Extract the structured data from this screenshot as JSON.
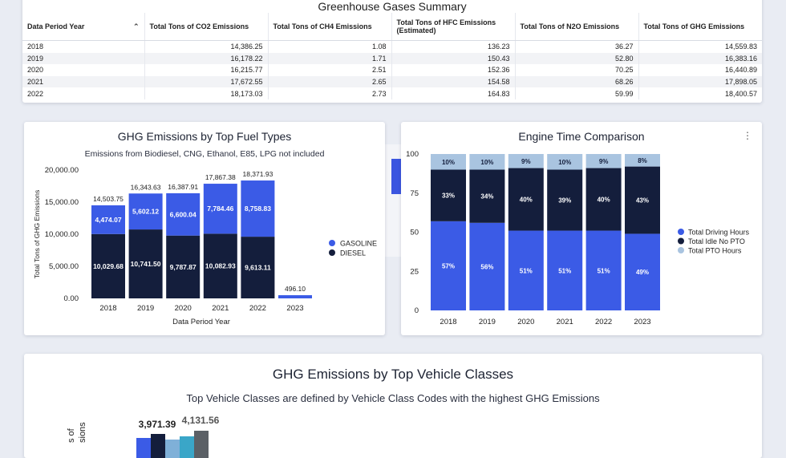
{
  "summary_table": {
    "title": "Greenhouse Gases Summary",
    "columns": [
      "Data Period Year",
      "Total Tons of CO2 Emissions",
      "Total Tons of CH4 Emissions",
      "Total Tons of HFC Emissions (Estimated)",
      "Total Tons of N2O Emissions",
      "Total Tons of GHG Emissions"
    ],
    "sort_icon": "caret-up-icon",
    "rows": [
      [
        "2018",
        "14,386.25",
        "1.08",
        "136.23",
        "36.27",
        "14,559.83"
      ],
      [
        "2019",
        "16,178.22",
        "1.71",
        "150.43",
        "52.80",
        "16,383.16"
      ],
      [
        "2020",
        "16,215.77",
        "2.51",
        "152.36",
        "70.25",
        "16,440.89"
      ],
      [
        "2021",
        "17,672.55",
        "2.65",
        "154.58",
        "68.26",
        "17,898.05"
      ],
      [
        "2022",
        "18,173.03",
        "2.73",
        "164.83",
        "59.99",
        "18,400.57"
      ]
    ]
  },
  "colors": {
    "gasoline": "#3b5be6",
    "diesel": "#141e3c",
    "driving": "#3b5be6",
    "idle": "#141e3c",
    "pto": "#a9c4e0"
  },
  "chart_data": [
    {
      "type": "bar",
      "stacked": true,
      "title": "GHG Emissions by Top Fuel Types",
      "subtitle": "Emissions from Biodiesel, CNG, Ethanol, E85, LPG not included",
      "xlabel": "Data Period Year",
      "ylabel": "Total Tons of GHG Emissions",
      "ylim": [
        0,
        20000
      ],
      "yticks": [
        "0.00",
        "5,000.00",
        "10,000.00",
        "15,000.00",
        "20,000.00"
      ],
      "categories": [
        "2018",
        "2019",
        "2020",
        "2021",
        "2022",
        "2023"
      ],
      "series": [
        {
          "name": "DIESEL",
          "values": [
            10029.68,
            10741.5,
            9787.87,
            10082.93,
            9613.11,
            0
          ],
          "labels": [
            "10,029.68",
            "10,741.50",
            "9,787.87",
            "10,082.93",
            "9,613.11",
            ""
          ]
        },
        {
          "name": "GASOLINE",
          "values": [
            4474.07,
            5602.12,
            6600.04,
            7784.46,
            8758.83,
            496.1
          ],
          "labels": [
            "4,474.07",
            "5,602.12",
            "6,600.04",
            "7,784.46",
            "8,758.83",
            ""
          ]
        }
      ],
      "totals": [
        "14,503.75",
        "16,343.63",
        "16,387.91",
        "17,867.38",
        "18,371.93",
        "496.10"
      ],
      "totals_values": [
        14503.75,
        16343.63,
        16387.91,
        17867.38,
        18371.93,
        496.1
      ],
      "legend": [
        "GASOLINE",
        "DIESEL"
      ],
      "legend_position": "right"
    },
    {
      "type": "bar",
      "stacked": true,
      "title": "Engine Time Comparison",
      "menu_icon": "kebab-menu-icon",
      "ylim": [
        0,
        100
      ],
      "yticks": [
        "0",
        "25",
        "50",
        "75",
        "100"
      ],
      "categories": [
        "2018",
        "2019",
        "2020",
        "2021",
        "2022",
        "2023"
      ],
      "series": [
        {
          "name": "Total Driving Hours",
          "values": [
            57,
            56,
            51,
            51,
            51,
            49
          ],
          "labels": [
            "57%",
            "56%",
            "51%",
            "51%",
            "51%",
            "49%"
          ]
        },
        {
          "name": "Total Idle No PTO",
          "values": [
            33,
            34,
            40,
            39,
            40,
            43
          ],
          "labels": [
            "33%",
            "34%",
            "40%",
            "39%",
            "40%",
            "43%"
          ]
        },
        {
          "name": "Total PTO Hours",
          "values": [
            10,
            10,
            9,
            10,
            9,
            8
          ],
          "labels": [
            "10%",
            "10%",
            "9%",
            "10%",
            "9%",
            "8%"
          ]
        }
      ],
      "legend_position": "right"
    },
    {
      "type": "bar",
      "title": "GHG Emissions by Top Vehicle Classes",
      "subtitle": "Top Vehicle Classes are defined by Vehicle Class Codes with the highest GHG Emissions",
      "ylabel_visible": "s of\nsions",
      "value_labels": [
        "3,971.39",
        "4,131.56"
      ]
    }
  ]
}
